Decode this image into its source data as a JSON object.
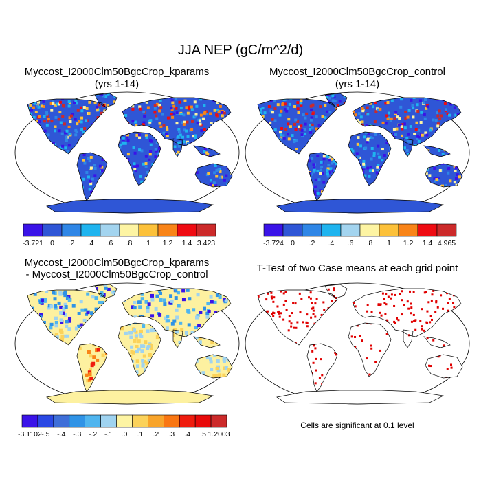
{
  "figure": {
    "title": "JJA NEP (gC/m^2/d)"
  },
  "panels": [
    {
      "title": "Myccost_I2000Clm50BgcCrop_kparams",
      "subtitle": "(yrs 1-14)",
      "colorbar": {
        "colors": [
          "#3a13e8",
          "#2f56d6",
          "#2f86e6",
          "#1fb4ef",
          "#a3d4ef",
          "#fdf4a3",
          "#fcc13a",
          "#f98418",
          "#ef0b12",
          "#cc2a2a"
        ],
        "labels": [
          "-3.721",
          "0",
          ".2",
          ".4",
          ".6",
          ".8",
          "1",
          "1.2",
          "1.4",
          "3.423"
        ]
      }
    },
    {
      "title": "Myccost_I2000Clm50BgcCrop_control",
      "subtitle": "(yrs 1-14)",
      "colorbar": {
        "colors": [
          "#3a13e8",
          "#2f56d6",
          "#2f86e6",
          "#1fb4ef",
          "#a3d4ef",
          "#fdf4a3",
          "#fcc13a",
          "#f98418",
          "#ef0b12",
          "#cc2a2a"
        ],
        "labels": [
          "-3.724",
          "0",
          ".2",
          ".4",
          ".6",
          ".8",
          "1",
          "1.2",
          "1.4",
          "4.965"
        ]
      }
    },
    {
      "title": "Myccost_I2000Clm50BgcCrop_kparams",
      "subtitle": "- Myccost_I2000Clm50BgcCrop_control",
      "colorbar": {
        "colors": [
          "#3a13e8",
          "#2a48e4",
          "#3f6fd8",
          "#2f93e6",
          "#4fb5ef",
          "#9fd3f0",
          "#fdf4a3",
          "#fbd25a",
          "#f8a42a",
          "#f97612",
          "#ef1c0e",
          "#e80a0a",
          "#cc2a2a"
        ],
        "labels": [
          "-3.1102",
          "-.5",
          "-.4",
          "-.3",
          "-.2",
          "-.1",
          ".0",
          ".1",
          ".2",
          ".3",
          ".4",
          ".5",
          "1.2003"
        ]
      }
    },
    {
      "title": "T-Test of two Case means at each grid point",
      "note": "Cells are significant at 0.1 level"
    }
  ],
  "chart_data": [
    {
      "type": "heatmap",
      "title": "Myccost_I2000Clm50BgcCrop_kparams (yrs 1-14)",
      "colorbar_levels": [
        "-3.721",
        "0",
        ".2",
        ".4",
        ".6",
        ".8",
        "1",
        "1.2",
        "1.4",
        "3.423"
      ],
      "range": [
        -3.721,
        3.423
      ]
    },
    {
      "type": "heatmap",
      "title": "Myccost_I2000Clm50BgcCrop_control (yrs 1-14)",
      "colorbar_levels": [
        "-3.724",
        "0",
        ".2",
        ".4",
        ".6",
        ".8",
        "1",
        "1.2",
        "1.4",
        "4.965"
      ],
      "range": [
        -3.724,
        4.965
      ]
    },
    {
      "type": "heatmap",
      "title": "Myccost_I2000Clm50BgcCrop_kparams - Myccost_I2000Clm50BgcCrop_control",
      "colorbar_levels": [
        "-3.1102",
        "-.5",
        "-.4",
        "-.3",
        "-.2",
        "-.1",
        ".0",
        ".1",
        ".2",
        ".3",
        ".4",
        ".5",
        "1.2003"
      ],
      "range": [
        -3.1102,
        1.2003
      ]
    },
    {
      "type": "heatmap",
      "title": "T-Test of two Case means at each grid point",
      "significance_level": 0.1,
      "significant_color": "#e00000"
    }
  ]
}
